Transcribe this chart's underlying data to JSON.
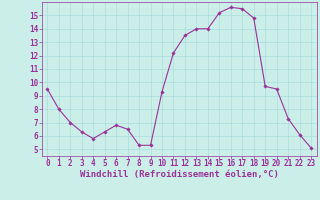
{
  "x": [
    0,
    1,
    2,
    3,
    4,
    5,
    6,
    7,
    8,
    9,
    10,
    11,
    12,
    13,
    14,
    15,
    16,
    17,
    18,
    19,
    20,
    21,
    22,
    23
  ],
  "y": [
    9.5,
    8.0,
    7.0,
    6.3,
    5.8,
    6.3,
    6.8,
    6.5,
    5.3,
    5.3,
    9.3,
    12.2,
    13.5,
    14.0,
    14.0,
    15.2,
    15.6,
    15.5,
    14.8,
    9.7,
    9.5,
    7.3,
    6.1,
    5.1
  ],
  "line_color": "#993399",
  "marker": "D",
  "marker_size": 1.8,
  "line_width": 0.8,
  "xlabel": "Windchill (Refroidissement éolien,°C)",
  "xlabel_fontsize": 6.5,
  "xlim": [
    -0.5,
    23.5
  ],
  "ylim": [
    4.5,
    16.0
  ],
  "yticks": [
    5,
    6,
    7,
    8,
    9,
    10,
    11,
    12,
    13,
    14,
    15
  ],
  "xticks": [
    0,
    1,
    2,
    3,
    4,
    5,
    6,
    7,
    8,
    9,
    10,
    11,
    12,
    13,
    14,
    15,
    16,
    17,
    18,
    19,
    20,
    21,
    22,
    23
  ],
  "grid_color": "#aadddd",
  "bg_color": "#cceee8",
  "tick_fontsize": 5.5,
  "tick_color": "#993399",
  "label_color": "#993399",
  "spine_color": "#993399"
}
